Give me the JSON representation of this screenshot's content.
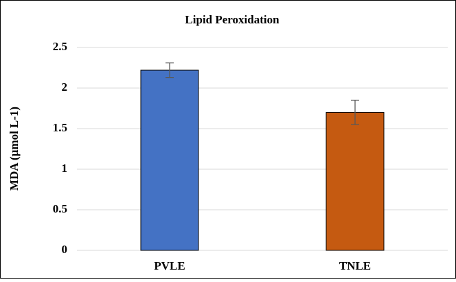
{
  "chart_data": {
    "type": "bar",
    "title": "Lipid Peroxidation",
    "ylabel": "MDA (µmol L-1)",
    "categories": [
      "PVLE",
      "TNLE"
    ],
    "values": [
      2.22,
      1.7
    ],
    "errors": [
      0.09,
      0.15
    ],
    "colors": [
      "#4472c4",
      "#c55a11"
    ],
    "ylim": [
      0,
      2.5
    ],
    "yticks": [
      0,
      0.5,
      1,
      1.5,
      2,
      2.5
    ],
    "grid": true
  }
}
